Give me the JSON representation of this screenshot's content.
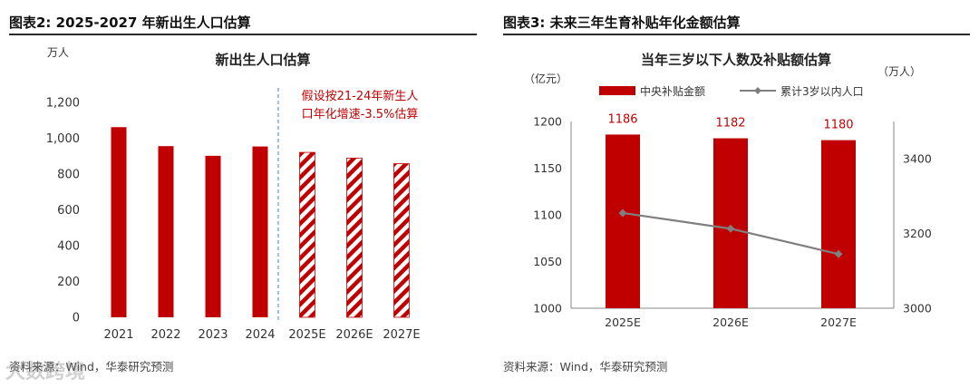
{
  "left_panel": {
    "header": "图表2:  2025-2027 年新出生人口估算",
    "source": "资料来源：Wind，华泰研究预测",
    "watermark": "大数跨境",
    "chart_data": {
      "type": "bar",
      "title": "新出生人口估算",
      "ylabel": "万人",
      "xlabel": "",
      "ylim": [
        0,
        1200
      ],
      "yticks": [
        0,
        200,
        400,
        600,
        800,
        1000,
        1200
      ],
      "ytick_labels": [
        "0",
        "200",
        "400",
        "600",
        "800",
        "1,000",
        "1,200"
      ],
      "categories": [
        "2021",
        "2022",
        "2023",
        "2024",
        "2025E",
        "2026E",
        "2027E"
      ],
      "values": [
        1062,
        956,
        902,
        954,
        921,
        889,
        858
      ],
      "hatched": [
        false,
        false,
        false,
        false,
        true,
        true,
        true
      ],
      "annotation": [
        "假设按21-24年新生人",
        "口年化增速-3.5%估算"
      ],
      "grid": false
    }
  },
  "right_panel": {
    "header": "图表3:  未来三年生育补贴年化金额估算",
    "source": "资料来源：Wind，华泰研究预测",
    "chart_data": {
      "type": "bar",
      "title": "当年三岁以下人数及补贴额估算",
      "ylabel_left": "（亿元）",
      "ylabel_right": "（万人）",
      "categories": [
        "2025E",
        "2026E",
        "2027E"
      ],
      "left_axis": {
        "ylim": [
          1000,
          1200
        ],
        "yticks": [
          1000,
          1050,
          1100,
          1150,
          1200
        ]
      },
      "right_axis": {
        "ylim": [
          3000,
          3500
        ],
        "yticks": [
          3000,
          3200,
          3400
        ]
      },
      "series": [
        {
          "name": "中央补贴金额",
          "type": "bar",
          "axis": "left",
          "values": [
            1186,
            1182,
            1180
          ],
          "labels": [
            "1186",
            "1182",
            "1180"
          ]
        },
        {
          "name": "累计3岁以内人口",
          "type": "line",
          "axis": "right",
          "values": [
            3255,
            3213,
            3145
          ]
        }
      ],
      "legend_position": "top",
      "grid": false
    }
  },
  "colors": {
    "bar_red": "#C00000",
    "line_gray": "#7F7F7F",
    "annotation_red": "#C00000",
    "divider_blue": "#5B9BD5"
  }
}
